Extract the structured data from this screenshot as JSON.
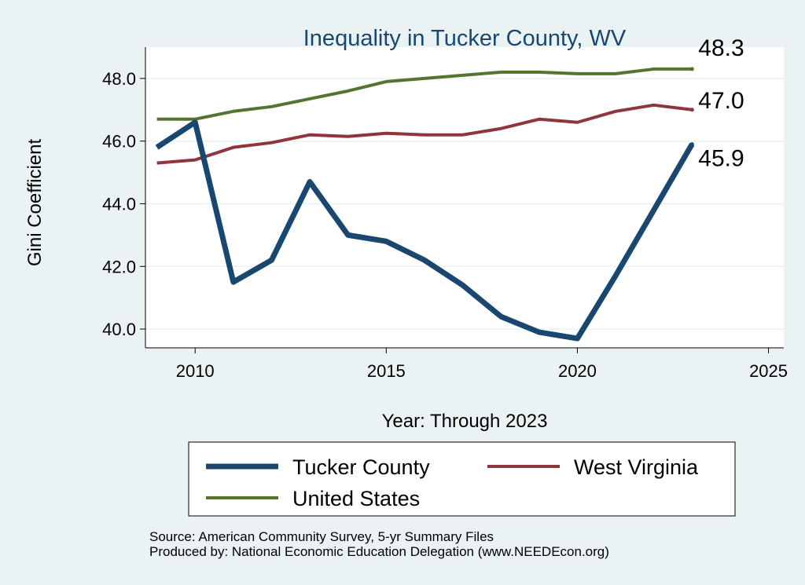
{
  "chart_data": {
    "type": "line",
    "title": "Inequality in Tucker County, WV",
    "xlabel": "Year: Through 2023",
    "ylabel": "Gini Coefficient",
    "xlim": [
      2008.7,
      2025.4
    ],
    "ylim": [
      39.4,
      49.0
    ],
    "xticks": [
      2010,
      2015,
      2020,
      2025
    ],
    "yticks": [
      "40.0",
      "42.0",
      "44.0",
      "46.0",
      "48.0"
    ],
    "grid": true,
    "legend_position": "bottom",
    "x": [
      2009,
      2010,
      2011,
      2012,
      2013,
      2014,
      2015,
      2016,
      2017,
      2018,
      2019,
      2020,
      2021,
      2022,
      2023
    ],
    "series": [
      {
        "name": "Tucker County",
        "color": "#1a476f",
        "width": 7,
        "end_label": "45.9",
        "values": [
          45.8,
          46.6,
          41.5,
          42.2,
          44.7,
          43.0,
          42.8,
          42.2,
          41.4,
          40.4,
          39.9,
          39.7,
          41.7,
          43.8,
          45.9
        ]
      },
      {
        "name": "West Virginia",
        "color": "#90353b",
        "width": 4,
        "end_label": "47.0",
        "values": [
          45.3,
          45.4,
          45.8,
          45.95,
          46.2,
          46.15,
          46.25,
          46.2,
          46.2,
          46.4,
          46.7,
          46.6,
          46.95,
          47.15,
          47.0
        ]
      },
      {
        "name": "United States",
        "color": "#55752f",
        "width": 4,
        "end_label": "48.3",
        "values": [
          46.7,
          46.7,
          46.95,
          47.1,
          47.35,
          47.6,
          47.9,
          48.0,
          48.1,
          48.2,
          48.2,
          48.15,
          48.15,
          48.3,
          48.3
        ]
      }
    ],
    "notes": [
      "Source: American Community Survey, 5-yr Summary Files",
      "Produced by: National Economic Education Delegation (www.NEEDEcon.org)"
    ]
  }
}
